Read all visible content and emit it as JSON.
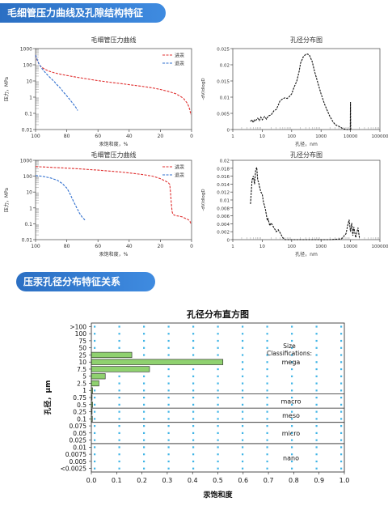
{
  "sections": {
    "section1_title": "毛细管压力曲线及孔隙结构特征",
    "section2_title": "压汞孔径分布特征关系"
  },
  "chart_data": [
    {
      "type": "line",
      "title": "毛细管压力曲线",
      "xlabel": "汞饱和度，%",
      "ylabel": "压力，MPa",
      "xlim": [
        100,
        0
      ],
      "ylim": [
        0.01,
        1000
      ],
      "yscale": "log",
      "x_ticks": [
        "100",
        "80",
        "60",
        "40",
        "20",
        "0"
      ],
      "y_ticks": [
        "0.01",
        "0.1",
        "1",
        "10",
        "100",
        "1000"
      ],
      "legend": "top-right",
      "series": [
        {
          "name": "进汞",
          "color": "#e03030",
          "dash": "dashed",
          "x": [
            100,
            99,
            98,
            97,
            95,
            92,
            88,
            84,
            80,
            75,
            70,
            65,
            60,
            55,
            50,
            45,
            40,
            35,
            30,
            25,
            20,
            15,
            10,
            7,
            5,
            3,
            2,
            1,
            0.5
          ],
          "y": [
            400,
            200,
            120,
            85,
            60,
            42,
            32,
            26,
            22,
            18,
            15,
            12.5,
            10.5,
            9,
            7.8,
            6.8,
            5.9,
            5.1,
            4.4,
            3.7,
            3.0,
            2.3,
            1.6,
            1.1,
            0.8,
            0.45,
            0.3,
            0.15,
            0.08
          ]
        },
        {
          "name": "退汞",
          "color": "#2f6fcf",
          "dash": "dashed",
          "x": [
            100,
            98,
            96,
            94,
            92,
            90,
            88,
            86,
            84,
            82,
            80,
            78,
            76,
            74,
            73
          ],
          "y": [
            400,
            120,
            60,
            35,
            22,
            14,
            9,
            5.5,
            3.5,
            2.0,
            1.2,
            0.7,
            0.4,
            0.22,
            0.15
          ]
        }
      ]
    },
    {
      "type": "line",
      "title": "孔径分布图",
      "xlabel": "孔径，nm",
      "ylabel": "-dV/dlogD",
      "xscale": "log",
      "xlim": [
        1,
        100000
      ],
      "ylim": [
        0,
        0.025
      ],
      "x_ticks": [
        "1",
        "10",
        "100",
        "1000",
        "10000",
        "100000"
      ],
      "y_ticks": [
        "0",
        "0.005",
        "0.01",
        "0.015",
        "0.02",
        "0.025"
      ],
      "series": [
        {
          "color": "#111111",
          "dash": "dashed",
          "x": [
            4,
            4.5,
            5,
            5.5,
            6,
            7,
            8,
            9,
            10,
            12,
            14,
            16,
            20,
            25,
            30,
            35,
            40,
            50,
            60,
            70,
            80,
            100,
            120,
            150,
            180,
            200,
            250,
            300,
            350,
            400,
            500,
            600,
            800,
            1000,
            1300,
            1600,
            2000,
            2500,
            3000,
            4000,
            5000,
            6000,
            7000,
            8000,
            9000,
            9500,
            9800,
            10000,
            10200,
            10500
          ],
          "y": [
            0.0025,
            0.003,
            0.0022,
            0.003,
            0.0028,
            0.0035,
            0.0028,
            0.0038,
            0.003,
            0.004,
            0.0032,
            0.0042,
            0.0045,
            0.0058,
            0.0062,
            0.0075,
            0.0088,
            0.0095,
            0.0098,
            0.0096,
            0.01,
            0.011,
            0.013,
            0.015,
            0.018,
            0.0205,
            0.0225,
            0.0232,
            0.0233,
            0.023,
            0.021,
            0.018,
            0.014,
            0.011,
            0.008,
            0.006,
            0.004,
            0.0025,
            0.0015,
            0.001,
            0.0005,
            0.0002,
            0.0,
            0.0,
            0.0,
            0.0,
            0.0,
            0.0085,
            0.0,
            0.0
          ]
        }
      ]
    },
    {
      "type": "line",
      "title": "毛细管压力曲线",
      "xlabel": "汞饱和度，%",
      "ylabel": "压力，MPa",
      "xlim": [
        100,
        0
      ],
      "ylim": [
        0.01,
        1000
      ],
      "yscale": "log",
      "x_ticks": [
        "100",
        "80",
        "60",
        "40",
        "20",
        "0"
      ],
      "y_ticks": [
        "0.01",
        "0.1",
        "1",
        "10",
        "100",
        "1000"
      ],
      "legend": "top-right",
      "series": [
        {
          "name": "进汞",
          "color": "#e03030",
          "dash": "dashed",
          "x": [
            100,
            95,
            90,
            85,
            80,
            75,
            70,
            65,
            60,
            55,
            50,
            45,
            40,
            35,
            30,
            25,
            20,
            17,
            15,
            14,
            13.5,
            13,
            12.5,
            12,
            11,
            10,
            8,
            6,
            4,
            2,
            1,
            0.5
          ],
          "y": [
            400,
            380,
            360,
            340,
            320,
            300,
            280,
            260,
            240,
            220,
            200,
            180,
            160,
            140,
            120,
            100,
            70,
            50,
            40,
            30,
            10,
            2,
            0.6,
            0.4,
            0.35,
            0.32,
            0.3,
            0.27,
            0.22,
            0.18,
            0.14,
            0.1
          ]
        },
        {
          "name": "退汞",
          "color": "#2f6fcf",
          "dash": "dashed",
          "x": [
            100,
            95,
            90,
            86,
            83,
            80,
            78,
            76,
            74,
            72,
            70,
            68
          ],
          "y": [
            110,
            95,
            75,
            55,
            35,
            18,
            8,
            3,
            1.2,
            0.5,
            0.25,
            0.16
          ]
        }
      ]
    },
    {
      "type": "line",
      "title": "孔径分布图",
      "xlabel": "孔径，nm",
      "ylabel": "-dV/dlogD",
      "xscale": "log",
      "xlim": [
        1,
        100000
      ],
      "ylim": [
        0,
        0.02
      ],
      "x_ticks": [
        "1",
        "10",
        "100",
        "1000",
        "10000",
        "100000"
      ],
      "y_ticks": [
        "0",
        "0.002",
        "0.004",
        "0.006",
        "0.008",
        "0.01",
        "0.012",
        "0.014",
        "0.016",
        "0.018",
        "0.02"
      ],
      "series": [
        {
          "color": "#111111",
          "dash": "dashed",
          "x": [
            4,
            4.5,
            5,
            5.5,
            6,
            6.5,
            7,
            7.5,
            8,
            9,
            10,
            11,
            12,
            13,
            14,
            15,
            16,
            18,
            20,
            25,
            30,
            35,
            40,
            50,
            60,
            80,
            100,
            200,
            500,
            1000,
            2000,
            5000,
            7000,
            8000,
            9000,
            10000,
            11000,
            12000,
            13000,
            15000,
            18000,
            20000
          ],
          "y": [
            0.009,
            0.015,
            0.016,
            0.014,
            0.0175,
            0.0182,
            0.015,
            0.0145,
            0.0135,
            0.012,
            0.0115,
            0.0095,
            0.0085,
            0.0075,
            0.006,
            0.0048,
            0.0052,
            0.0035,
            0.0042,
            0.003,
            0.002,
            0.0025,
            0.0018,
            0.0005,
            0.0,
            0.0,
            0.0,
            0.0,
            0.0,
            0.0,
            0.0,
            0.0002,
            0.0015,
            0.0035,
            0.005,
            0.002,
            0.0042,
            0.001,
            0.0032,
            0.0005,
            0.003,
            0.0005
          ]
        }
      ]
    },
    {
      "type": "bar",
      "orientation": "horizontal",
      "title": "孔径分布直方图",
      "xlabel": "汞饱和度",
      "ylabel": "孔径，μm",
      "xlim": [
        0,
        1.0
      ],
      "x_ticks": [
        "0.0",
        "0.1",
        "0.2",
        "0.3",
        "0.4",
        "0.5",
        "0.6",
        "0.7",
        "0.8",
        "0.9",
        "1.0"
      ],
      "categories": [
        ">100",
        "100",
        "75",
        "50",
        "25",
        "10",
        "7.5",
        "5",
        "2.5",
        "1",
        "0.75",
        "0.5",
        "0.25",
        "0.1",
        "0.075",
        "0.05",
        "0.025",
        "0.01",
        "0.0075",
        "0.005",
        "<0.0025"
      ],
      "values": [
        0,
        0,
        0,
        0,
        0.16,
        0.52,
        0.23,
        0.055,
        0.03,
        0.005,
        0.003,
        0.005,
        0.003,
        0.004,
        0,
        0,
        0,
        0,
        0,
        0,
        0
      ],
      "bar_color": "#8fd16f",
      "size_heading": "Size\nClassifications:",
      "classes": [
        {
          "label": "mega",
          "boundary_after": "1"
        },
        {
          "label": "macro",
          "boundary_after": "0.5"
        },
        {
          "label": "meso",
          "boundary_after": "0.1"
        },
        {
          "label": "micro",
          "boundary_after": "0.025"
        },
        {
          "label": "nano",
          "boundary_after": ""
        }
      ],
      "grid": "dotted"
    }
  ]
}
